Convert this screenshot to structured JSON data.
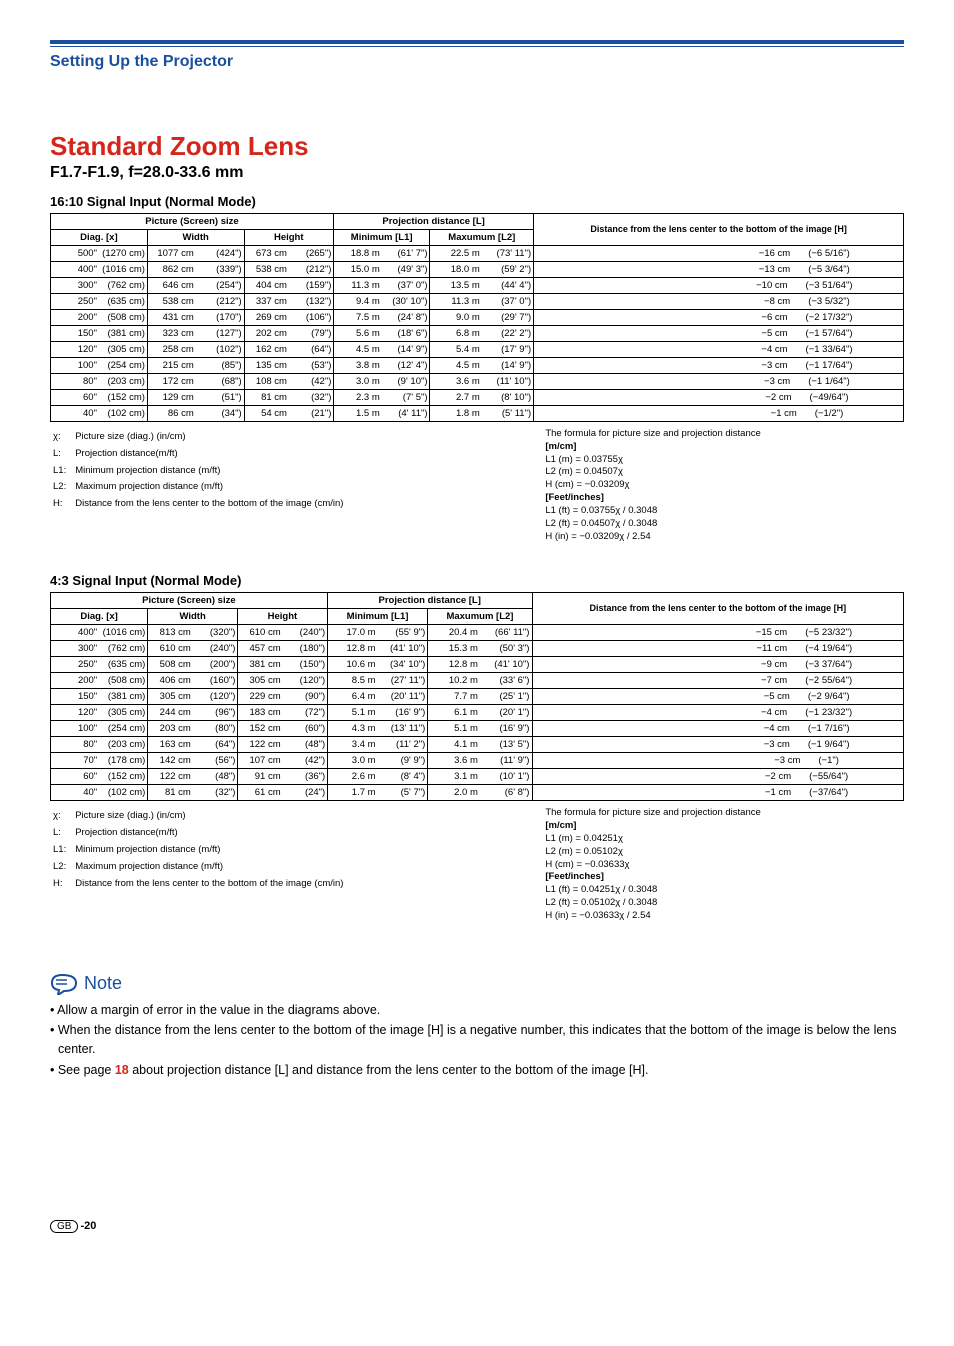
{
  "header": {
    "title": "Setting Up the Projector"
  },
  "main_title": "Standard Zoom Lens",
  "sub_title": "F1.7-F1.9, f=28.0-33.6 mm",
  "tables": {
    "t1": {
      "mode_title": "16:10 Signal Input (Normal Mode)",
      "headers": {
        "picture": "Picture (Screen) size",
        "proj": "Projection distance [L]",
        "dist": "Distance from the lens center to the bottom of the image [H]",
        "diag": "Diag. [x]",
        "width": "Width",
        "height": "Height",
        "minl": "Minimum [L1]",
        "maxl": "Maxumum [L2]"
      },
      "rows": [
        {
          "d": "500\"",
          "dcm": "(1270 cm)",
          "w": "1077 cm",
          "win": "(424\")",
          "h": "673 cm",
          "hin": "(265\")",
          "l1": "18.8 m",
          "l1f": "(61' 7\")",
          "l2": "22.5 m",
          "l2f": "(73' 11\")",
          "hcm": "−16 cm",
          "hinv": "(−6 5/16\")"
        },
        {
          "d": "400\"",
          "dcm": "(1016 cm)",
          "w": "862 cm",
          "win": "(339\")",
          "h": "538 cm",
          "hin": "(212\")",
          "l1": "15.0 m",
          "l1f": "(49' 3\")",
          "l2": "18.0 m",
          "l2f": "(59' 2\")",
          "hcm": "−13 cm",
          "hinv": "(−5 3/64\")"
        },
        {
          "d": "300\"",
          "dcm": "(762 cm)",
          "w": "646 cm",
          "win": "(254\")",
          "h": "404 cm",
          "hin": "(159\")",
          "l1": "11.3 m",
          "l1f": "(37' 0\")",
          "l2": "13.5 m",
          "l2f": "(44' 4\")",
          "hcm": "−10 cm",
          "hinv": "(−3 51/64\")"
        },
        {
          "d": "250\"",
          "dcm": "(635 cm)",
          "w": "538 cm",
          "win": "(212\")",
          "h": "337 cm",
          "hin": "(132\")",
          "l1": "9.4 m",
          "l1f": "(30' 10\")",
          "l2": "11.3 m",
          "l2f": "(37' 0\")",
          "hcm": "−8 cm",
          "hinv": "(−3 5/32\")"
        },
        {
          "d": "200\"",
          "dcm": "(508 cm)",
          "w": "431 cm",
          "win": "(170\")",
          "h": "269 cm",
          "hin": "(106\")",
          "l1": "7.5 m",
          "l1f": "(24' 8\")",
          "l2": "9.0 m",
          "l2f": "(29' 7\")",
          "hcm": "−6 cm",
          "hinv": "(−2 17/32\")"
        },
        {
          "d": "150\"",
          "dcm": "(381 cm)",
          "w": "323 cm",
          "win": "(127\")",
          "h": "202 cm",
          "hin": "(79\")",
          "l1": "5.6 m",
          "l1f": "(18' 6\")",
          "l2": "6.8 m",
          "l2f": "(22' 2\")",
          "hcm": "−5 cm",
          "hinv": "(−1 57/64\")"
        },
        {
          "d": "120\"",
          "dcm": "(305 cm)",
          "w": "258 cm",
          "win": "(102\")",
          "h": "162 cm",
          "hin": "(64\")",
          "l1": "4.5 m",
          "l1f": "(14' 9\")",
          "l2": "5.4 m",
          "l2f": "(17' 9\")",
          "hcm": "−4 cm",
          "hinv": "(−1 33/64\")"
        },
        {
          "d": "100\"",
          "dcm": "(254 cm)",
          "w": "215 cm",
          "win": "(85\")",
          "h": "135 cm",
          "hin": "(53\")",
          "l1": "3.8 m",
          "l1f": "(12' 4\")",
          "l2": "4.5 m",
          "l2f": "(14' 9\")",
          "hcm": "−3 cm",
          "hinv": "(−1 17/64\")"
        },
        {
          "d": "80\"",
          "dcm": "(203 cm)",
          "w": "172 cm",
          "win": "(68\")",
          "h": "108 cm",
          "hin": "(42\")",
          "l1": "3.0 m",
          "l1f": "(9' 10\")",
          "l2": "3.6 m",
          "l2f": "(11' 10\")",
          "hcm": "−3 cm",
          "hinv": "(−1 1/64\")"
        },
        {
          "d": "60\"",
          "dcm": "(152 cm)",
          "w": "129 cm",
          "win": "(51\")",
          "h": "81 cm",
          "hin": "(32\")",
          "l1": "2.3 m",
          "l1f": "(7' 5\")",
          "l2": "2.7 m",
          "l2f": "(8' 10\")",
          "hcm": "−2 cm",
          "hinv": "(−49/64\")"
        },
        {
          "d": "40\"",
          "dcm": "(102 cm)",
          "w": "86 cm",
          "win": "(34\")",
          "h": "54 cm",
          "hin": "(21\")",
          "l1": "1.5 m",
          "l1f": "(4' 11\")",
          "l2": "1.8 m",
          "l2f": "(5' 11\")",
          "hcm": "−1 cm",
          "hinv": "(−1/2\")"
        }
      ],
      "formula": {
        "header": "The formula for picture size and projection distance",
        "mcm_h": "[m/cm]",
        "l1m": "L1 (m) = 0.03755χ",
        "l2m": "L2 (m) = 0.04507χ",
        "hcm": "H (cm) = −0.03209χ",
        "fi_h": "[Feet/inches]",
        "l1f": "L1 (ft) = 0.03755χ / 0.3048",
        "l2f": "L2 (ft) = 0.04507χ / 0.3048",
        "hin": "H (in) = −0.03209χ / 2.54"
      }
    },
    "t2": {
      "mode_title": "4:3 Signal Input (Normal Mode)",
      "headers": {
        "picture": "Picture (Screen) size",
        "proj": "Projection distance [L]",
        "dist": "Distance from the lens center to the bottom of the image [H]",
        "diag": "Diag. [x]",
        "width": "Width",
        "height": "Height",
        "minl": "Minimum [L1]",
        "maxl": "Maxumum [L2]"
      },
      "rows": [
        {
          "d": "400\"",
          "dcm": "(1016 cm)",
          "w": "813 cm",
          "win": "(320\")",
          "h": "610 cm",
          "hin": "(240\")",
          "l1": "17.0 m",
          "l1f": "(55' 9\")",
          "l2": "20.4 m",
          "l2f": "(66' 11\")",
          "hcm": "−15 cm",
          "hinv": "(−5 23/32\")"
        },
        {
          "d": "300\"",
          "dcm": "(762 cm)",
          "w": "610 cm",
          "win": "(240\")",
          "h": "457 cm",
          "hin": "(180\")",
          "l1": "12.8 m",
          "l1f": "(41' 10\")",
          "l2": "15.3 m",
          "l2f": "(50' 3\")",
          "hcm": "−11 cm",
          "hinv": "(−4 19/64\")"
        },
        {
          "d": "250\"",
          "dcm": "(635 cm)",
          "w": "508 cm",
          "win": "(200\")",
          "h": "381 cm",
          "hin": "(150\")",
          "l1": "10.6 m",
          "l1f": "(34' 10\")",
          "l2": "12.8 m",
          "l2f": "(41' 10\")",
          "hcm": "−9 cm",
          "hinv": "(−3 37/64\")"
        },
        {
          "d": "200\"",
          "dcm": "(508 cm)",
          "w": "406 cm",
          "win": "(160\")",
          "h": "305 cm",
          "hin": "(120\")",
          "l1": "8.5 m",
          "l1f": "(27' 11\")",
          "l2": "10.2 m",
          "l2f": "(33' 6\")",
          "hcm": "−7 cm",
          "hinv": "(−2 55/64\")"
        },
        {
          "d": "150\"",
          "dcm": "(381 cm)",
          "w": "305 cm",
          "win": "(120\")",
          "h": "229 cm",
          "hin": "(90\")",
          "l1": "6.4 m",
          "l1f": "(20' 11\")",
          "l2": "7.7 m",
          "l2f": "(25' 1\")",
          "hcm": "−5 cm",
          "hinv": "(−2 9/64\")"
        },
        {
          "d": "120\"",
          "dcm": "(305 cm)",
          "w": "244 cm",
          "win": "(96\")",
          "h": "183 cm",
          "hin": "(72\")",
          "l1": "5.1 m",
          "l1f": "(16' 9\")",
          "l2": "6.1 m",
          "l2f": "(20' 1\")",
          "hcm": "−4 cm",
          "hinv": "(−1 23/32\")"
        },
        {
          "d": "100\"",
          "dcm": "(254 cm)",
          "w": "203 cm",
          "win": "(80\")",
          "h": "152 cm",
          "hin": "(60\")",
          "l1": "4.3 m",
          "l1f": "(13' 11\")",
          "l2": "5.1 m",
          "l2f": "(16' 9\")",
          "hcm": "−4 cm",
          "hinv": "(−1 7/16\")"
        },
        {
          "d": "80\"",
          "dcm": "(203 cm)",
          "w": "163 cm",
          "win": "(64\")",
          "h": "122 cm",
          "hin": "(48\")",
          "l1": "3.4 m",
          "l1f": "(11' 2\")",
          "l2": "4.1 m",
          "l2f": "(13' 5\")",
          "hcm": "−3 cm",
          "hinv": "(−1 9/64\")"
        },
        {
          "d": "70\"",
          "dcm": "(178 cm)",
          "w": "142 cm",
          "win": "(56\")",
          "h": "107 cm",
          "hin": "(42\")",
          "l1": "3.0 m",
          "l1f": "(9' 9\")",
          "l2": "3.6 m",
          "l2f": "(11' 9\")",
          "hcm": "−3 cm",
          "hinv": "(−1\")"
        },
        {
          "d": "60\"",
          "dcm": "(152 cm)",
          "w": "122 cm",
          "win": "(48\")",
          "h": "91 cm",
          "hin": "(36\")",
          "l1": "2.6 m",
          "l1f": "(8' 4\")",
          "l2": "3.1 m",
          "l2f": "(10' 1\")",
          "hcm": "−2 cm",
          "hinv": "(−55/64\")"
        },
        {
          "d": "40\"",
          "dcm": "(102 cm)",
          "w": "81 cm",
          "win": "(32\")",
          "h": "61 cm",
          "hin": "(24\")",
          "l1": "1.7 m",
          "l1f": "(5' 7\")",
          "l2": "2.0 m",
          "l2f": "(6' 8\")",
          "hcm": "−1 cm",
          "hinv": "(−37/64\")"
        }
      ],
      "formula": {
        "header": "The formula for picture size and projection distance",
        "mcm_h": "[m/cm]",
        "l1m": "L1 (m) = 0.04251χ",
        "l2m": "L2 (m) = 0.05102χ",
        "hcm": "H (cm) = −0.03633χ",
        "fi_h": "[Feet/inches]",
        "l1f": "L1 (ft) = 0.04251χ / 0.3048",
        "l2f": "L2 (ft) = 0.05102χ / 0.3048",
        "hin": "H (in) = −0.03633χ / 2.54"
      }
    }
  },
  "legend": {
    "chi": "Picture size (diag.) (in/cm)",
    "l": "Projection distance(m/ft)",
    "l1": "Minimum projection distance (m/ft)",
    "l2": "Maximum projection distance (m/ft)",
    "h": "Distance from the lens center to the bottom of the image (cm/in)"
  },
  "note": {
    "label": "Note",
    "items": [
      "• Allow a margin of error in the value in the diagrams above.",
      "• When the distance from the lens center to the bottom of the image [H] is a negative number, this indicates that the bottom of the image is below the lens center.",
      "• See page 18 about projection distance [L] and distance from the lens center to the bottom of the image [H]."
    ]
  },
  "footer": {
    "gb": "GB",
    "page": "-20"
  }
}
